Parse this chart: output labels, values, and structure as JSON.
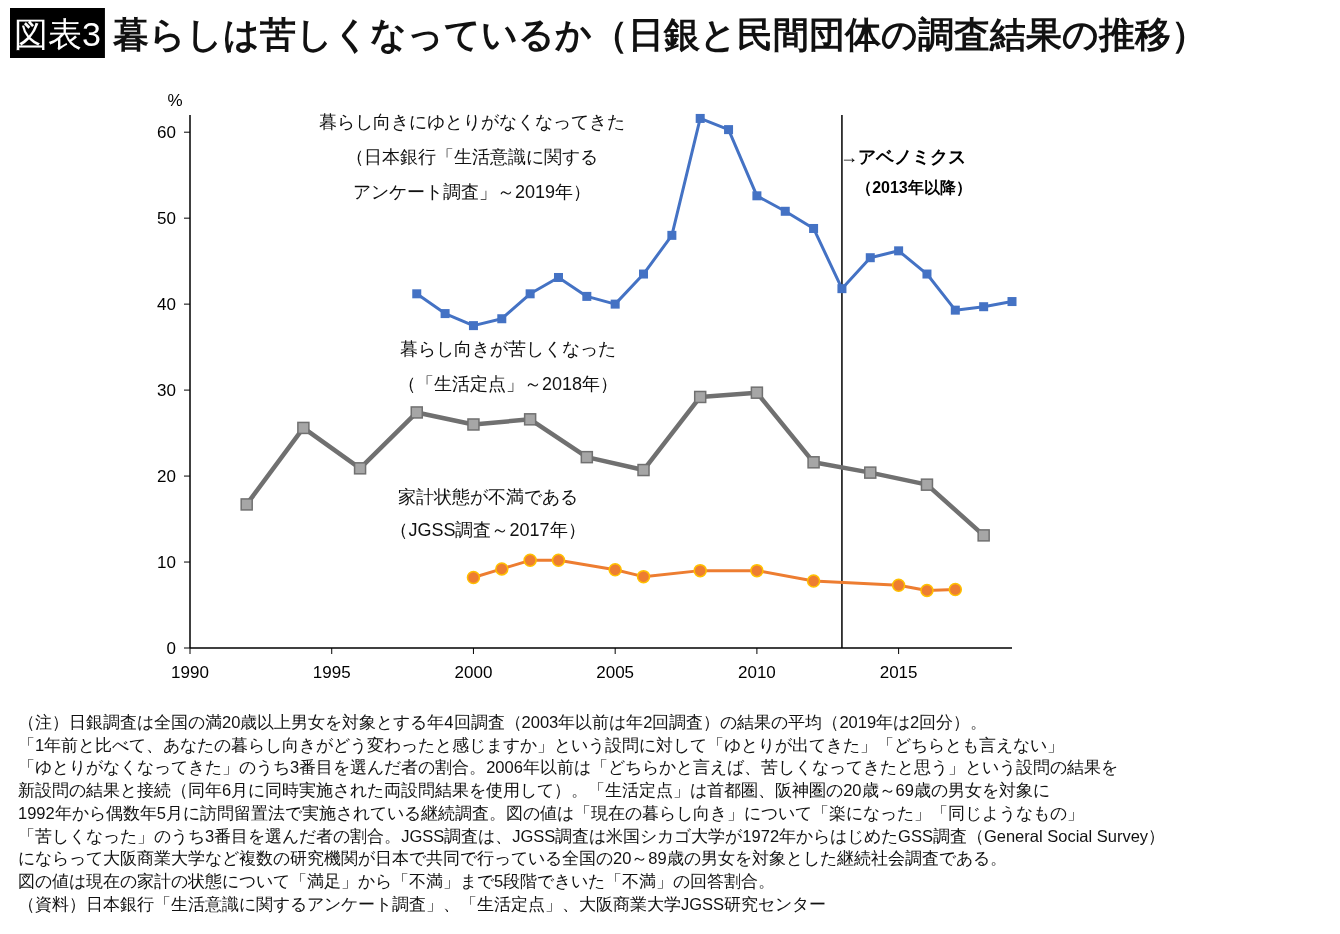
{
  "chart_data": {
    "type": "line",
    "title": "図表3 暮らしは苦しくなっているか（日銀と民間団体の調査結果の推移）",
    "ylabel": "%",
    "xlim": [
      1990,
      2019
    ],
    "xticks": [
      1990,
      1995,
      2000,
      2005,
      2010,
      2015
    ],
    "ylim": [
      0,
      62
    ],
    "yticks": [
      0,
      10,
      20,
      30,
      40,
      50,
      60
    ],
    "grid": false,
    "legend": false,
    "series": [
      {
        "name": "暮らし向きにゆとりがなくなってきた（日本銀行「生活意識に関するアンケート調査」～2019年）",
        "color": "#4472c4",
        "marker": "square",
        "x": [
          1998,
          1999,
          2000,
          2001,
          2002,
          2003,
          2004,
          2005,
          2006,
          2007,
          2008,
          2009,
          2010,
          2011,
          2012,
          2013,
          2014,
          2015,
          2016,
          2017,
          2018,
          2019
        ],
        "values": [
          41.2,
          38.9,
          37.5,
          38.3,
          41.2,
          43.1,
          40.9,
          40.0,
          43.5,
          48.0,
          61.6,
          60.3,
          52.6,
          50.8,
          48.8,
          41.8,
          45.4,
          46.2,
          43.5,
          39.3,
          39.7,
          40.3
        ]
      },
      {
        "name": "暮らし向きが苦しくなった（「生活定点」～2018年）",
        "color": "#707070",
        "marker": "square",
        "x": [
          1992,
          1994,
          1996,
          1998,
          2000,
          2002,
          2004,
          2006,
          2008,
          2010,
          2012,
          2014,
          2016,
          2018
        ],
        "values": [
          16.7,
          25.6,
          20.9,
          27.4,
          26.0,
          26.6,
          22.2,
          20.7,
          29.2,
          29.7,
          21.6,
          20.4,
          19.0,
          13.1
        ]
      },
      {
        "name": "家計状態が不満である（JGSS調査～2017年）",
        "color": "#ed7d31",
        "marker": "circle",
        "x": [
          2000,
          2001,
          2002,
          2003,
          2005,
          2006,
          2008,
          2010,
          2012,
          2015,
          2016,
          2017
        ],
        "values": [
          8.2,
          9.2,
          10.2,
          10.2,
          9.1,
          8.3,
          9.0,
          9.0,
          7.8,
          7.3,
          6.7,
          6.8
        ]
      }
    ],
    "ref_lines": [
      {
        "axis": "x",
        "value": 2013,
        "label": "→アベノミクス（2013年以降）",
        "color": "#000000"
      }
    ],
    "annotations": [
      "（注）日銀調査は全国の満20歳以上男女を対象とする年4回調査（2003年以前は年2回調査）の結果の平均（2019年は2回分）。",
      "「1年前と比べて、あなたの暮らし向きがどう変わったと感じますか」という設問に対して「ゆとりが出てきた」「どちらとも言えない」",
      "「ゆとりがなくなってきた」のうち3番目を選んだ者の割合。2006年以前は「どちらかと言えば、苦しくなってきたと思う」という設問の結果を",
      "新設問の結果と接続（同年6月に同時実施された両設問結果を使用して）。「生活定点」は首都圏、阪神圏の20歳～69歳の男女を対象に",
      "1992年から偶数年5月に訪問留置法で実施されている継続調査。図の値は「現在の暮らし向き」について「楽になった」「同じようなもの」",
      "「苦しくなった」のうち3番目を選んだ者の割合。JGSS調査は、JGSS調査は米国シカゴ大学が1972年からはじめたGSS調査（General Social Survey）",
      "にならって大阪商業大学など複数の研究機関が日本で共同で行っている全国の20～89歳の男女を対象とした継続社会調査である。",
      "図の値は現在の家計の状態について「満足」から「不満」まで5段階できいた「不満」の回答割合。",
      "（資料）日本銀行「生活意識に関するアンケート調査」、「生活定点」、大阪商業大学JGSS研究センター"
    ]
  }
}
